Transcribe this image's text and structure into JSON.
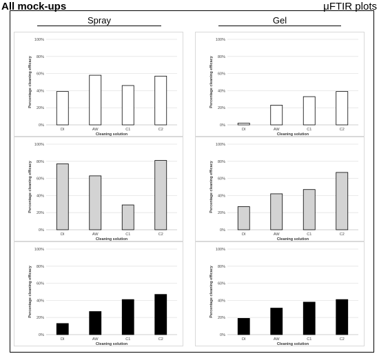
{
  "header": {
    "left_title": "All mock-ups",
    "right_title": "μFTIR plots"
  },
  "columns": [
    "Spray",
    "Gel"
  ],
  "chart_data": [
    {
      "type": "bar",
      "categories": [
        "DI",
        "AW",
        "C1",
        "C2"
      ],
      "values": [
        39,
        58,
        46,
        57
      ],
      "ylabel": "Percentage cleaning efficacy",
      "xlabel": "Cleaning solution",
      "ylim": [
        0,
        100
      ],
      "yticks": [
        "0%",
        "20%",
        "40%",
        "60%",
        "80%",
        "100%"
      ],
      "bar_color": "#ffffff",
      "grid": true
    },
    {
      "type": "bar",
      "categories": [
        "DI",
        "AW",
        "C1",
        "C2"
      ],
      "values": [
        2,
        23,
        33,
        39
      ],
      "ylabel": "Percentage cleaning efficacy",
      "xlabel": "Cleaning solution",
      "ylim": [
        0,
        100
      ],
      "yticks": [
        "0%",
        "20%",
        "40%",
        "60%",
        "80%",
        "100%"
      ],
      "bar_color": "#ffffff",
      "grid": true
    },
    {
      "type": "bar",
      "categories": [
        "DI",
        "AW",
        "C1",
        "C2"
      ],
      "values": [
        77,
        63,
        29,
        81
      ],
      "ylabel": "Percentage cleaning efficacy",
      "xlabel": "Cleaning solution",
      "ylim": [
        0,
        100
      ],
      "yticks": [
        "0%",
        "20%",
        "40%",
        "60%",
        "80%",
        "100%"
      ],
      "bar_color": "#d3d3d3",
      "grid": true
    },
    {
      "type": "bar",
      "categories": [
        "DI",
        "AW",
        "C1",
        "C2"
      ],
      "values": [
        27,
        42,
        47,
        67
      ],
      "ylabel": "Percentage cleaning efficacy",
      "xlabel": "Cleaning solution",
      "ylim": [
        0,
        100
      ],
      "yticks": [
        "0%",
        "20%",
        "40%",
        "60%",
        "80%",
        "100%"
      ],
      "bar_color": "#d3d3d3",
      "grid": true
    },
    {
      "type": "bar",
      "categories": [
        "DI",
        "AW",
        "C1",
        "C2"
      ],
      "values": [
        13,
        27,
        41,
        47
      ],
      "ylabel": "Percentage cleaning efficacy",
      "xlabel": "Cleaning solution",
      "ylim": [
        0,
        100
      ],
      "yticks": [
        "0%",
        "20%",
        "40%",
        "60%",
        "80%",
        "100%"
      ],
      "bar_color": "#000000",
      "grid": true
    },
    {
      "type": "bar",
      "categories": [
        "DI",
        "AW",
        "C1",
        "C2"
      ],
      "values": [
        19,
        31,
        38,
        41
      ],
      "ylabel": "Percentage cleaning efficacy",
      "xlabel": "Cleaning solution",
      "ylim": [
        0,
        100
      ],
      "yticks": [
        "0%",
        "20%",
        "40%",
        "60%",
        "80%",
        "100%"
      ],
      "bar_color": "#000000",
      "grid": true
    }
  ]
}
